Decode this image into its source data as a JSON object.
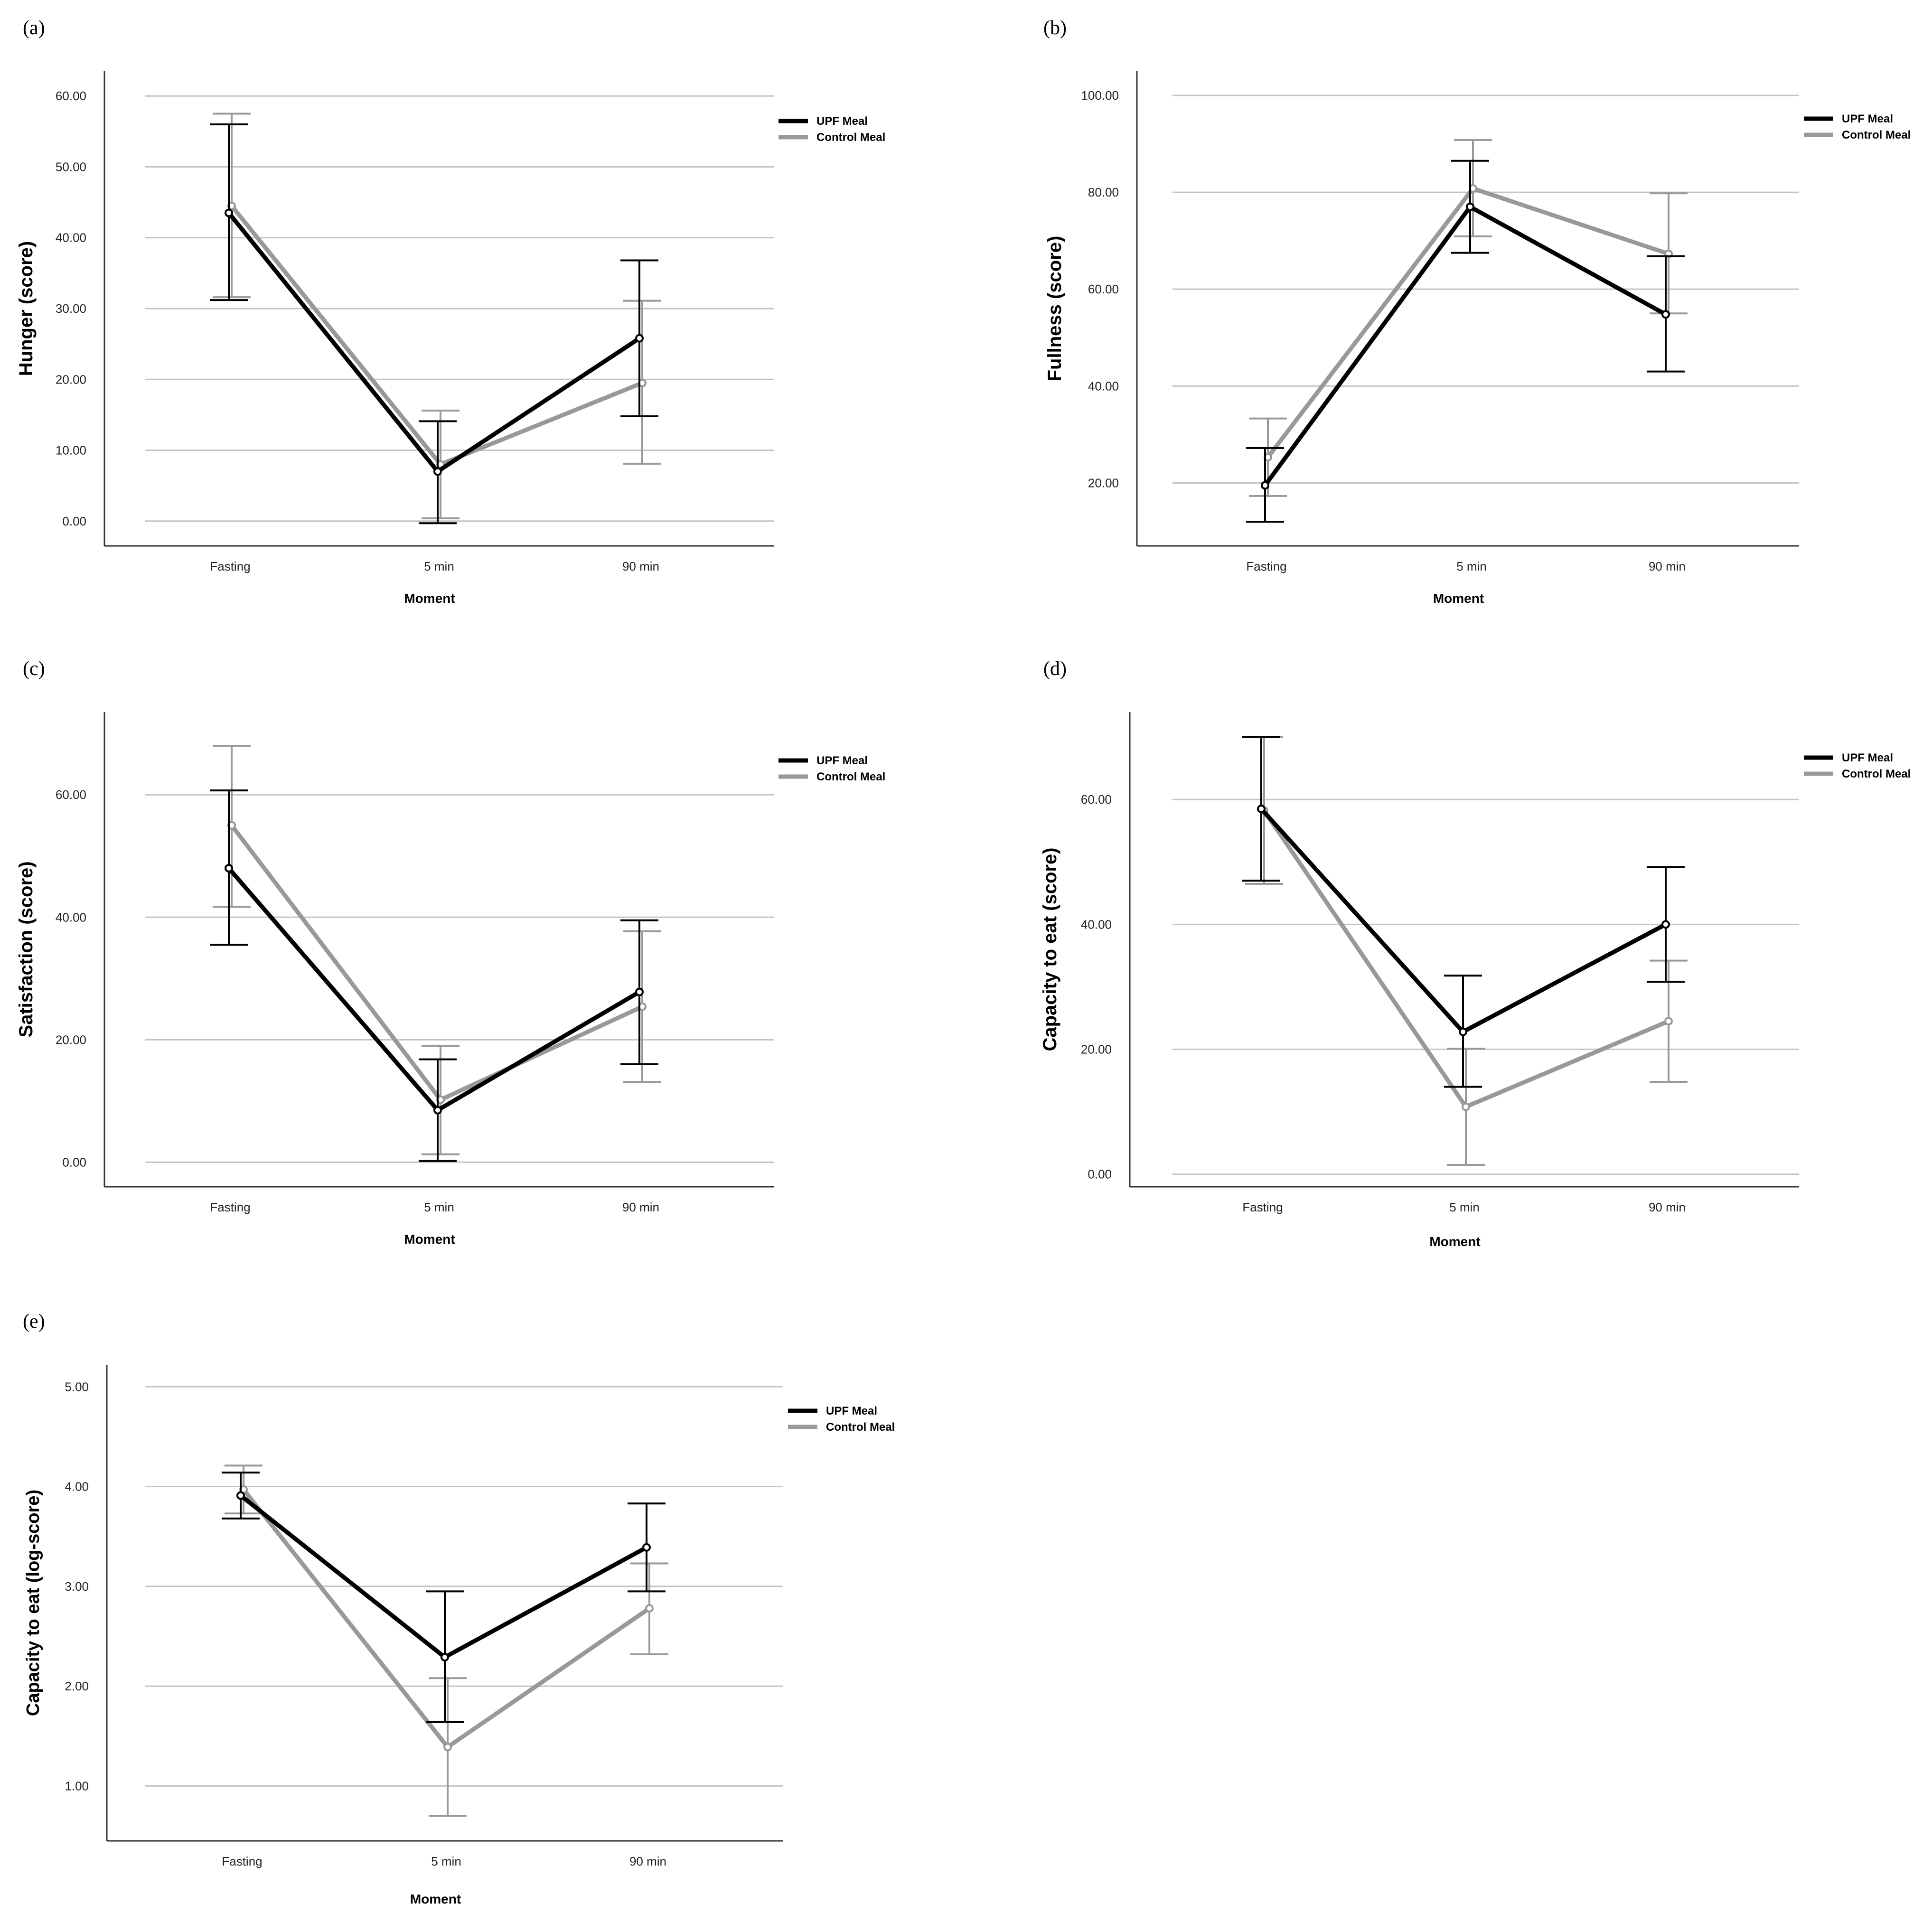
{
  "figure": {
    "series_names": [
      "UPF Meal",
      "Control Meal"
    ],
    "series_colors": [
      "#000000",
      "#999999"
    ]
  },
  "chart_data": [
    {
      "panel": "(a)",
      "type": "line",
      "categories": [
        "Fasting",
        "5 min",
        "90 min"
      ],
      "xlabel": "Moment",
      "ylabel": "Hunger (score)",
      "ylim": [
        -3.5,
        63.5
      ],
      "yticks": [
        0,
        10,
        20,
        30,
        40,
        50,
        60
      ],
      "ytick_labels": [
        "0.00",
        "10.00",
        "20.00",
        "30.00",
        "40.00",
        "50.00",
        "60.00"
      ],
      "legend": [
        "UPF Meal",
        "Control Meal"
      ],
      "series": [
        {
          "name": "UPF Meal",
          "values": [
            43.5,
            7.0,
            25.8
          ],
          "lower": [
            31.2,
            -0.3,
            14.8
          ],
          "upper": [
            56.0,
            14.1,
            36.8
          ]
        },
        {
          "name": "Control Meal",
          "values": [
            44.5,
            8.0,
            19.5
          ],
          "lower": [
            31.6,
            0.4,
            8.1
          ],
          "upper": [
            57.5,
            15.6,
            31.1
          ]
        }
      ]
    },
    {
      "panel": "(b)",
      "type": "line",
      "categories": [
        "Fasting",
        "5 min",
        "90 min"
      ],
      "xlabel": "Moment",
      "ylabel": "Fullness (score)",
      "ylim": [
        7.0,
        105.0
      ],
      "yticks": [
        20,
        40,
        60,
        80,
        100
      ],
      "ytick_labels": [
        "20.00",
        "40.00",
        "60.00",
        "80.00",
        "100.00"
      ],
      "legend": [
        "UPF Meal",
        "Control Meal"
      ],
      "series": [
        {
          "name": "UPF Meal",
          "values": [
            19.5,
            77.0,
            54.8
          ],
          "lower": [
            12.0,
            67.5,
            43.0
          ],
          "upper": [
            27.2,
            86.5,
            66.8
          ]
        },
        {
          "name": "Control Meal",
          "values": [
            25.3,
            80.8,
            67.3
          ],
          "lower": [
            17.3,
            70.9,
            55.0
          ],
          "upper": [
            33.3,
            90.8,
            79.8
          ]
        }
      ]
    },
    {
      "panel": "(c)",
      "type": "line",
      "categories": [
        "Fasting",
        "5 min",
        "90 min"
      ],
      "xlabel": "Moment",
      "ylabel": "Satisfaction (score)",
      "ylim": [
        -4.0,
        73.5
      ],
      "yticks": [
        0,
        20,
        40,
        60
      ],
      "ytick_labels": [
        "0.00",
        "20.00",
        "40.00",
        "60.00"
      ],
      "legend": [
        "UPF Meal",
        "Control Meal"
      ],
      "series": [
        {
          "name": "UPF Meal",
          "values": [
            48.0,
            8.5,
            27.8
          ],
          "lower": [
            35.5,
            0.2,
            16.0
          ],
          "upper": [
            60.7,
            16.8,
            39.5
          ]
        },
        {
          "name": "Control Meal",
          "values": [
            55.0,
            10.2,
            25.4
          ],
          "lower": [
            41.7,
            1.3,
            13.1
          ],
          "upper": [
            68.0,
            19.0,
            37.7
          ]
        }
      ]
    },
    {
      "panel": "(d)",
      "type": "line",
      "categories": [
        "Fasting",
        "5 min",
        "90 min"
      ],
      "xlabel": "Moment",
      "ylabel": "Capacity to eat (score)",
      "ylim": [
        -2.0,
        74.0
      ],
      "yticks": [
        0,
        20,
        40,
        60
      ],
      "ytick_labels": [
        "0.00",
        "20.00",
        "40.00",
        "60.00"
      ],
      "legend": [
        "UPF Meal",
        "Control Meal"
      ],
      "series": [
        {
          "name": "UPF Meal",
          "values": [
            58.5,
            22.8,
            40.0
          ],
          "lower": [
            47.0,
            14.0,
            30.8
          ],
          "upper": [
            70.0,
            31.8,
            49.2
          ]
        },
        {
          "name": "Control Meal",
          "values": [
            58.2,
            10.8,
            24.5
          ],
          "lower": [
            46.5,
            1.5,
            14.8
          ],
          "upper": [
            70.0,
            20.1,
            34.2
          ]
        }
      ]
    },
    {
      "panel": "(e)",
      "type": "line",
      "categories": [
        "Fasting",
        "5 min",
        "90 min"
      ],
      "xlabel": "Moment",
      "ylabel": "Capacity to eat (log-score)",
      "ylim": [
        0.45,
        5.22
      ],
      "yticks": [
        1,
        2,
        3,
        4,
        5
      ],
      "ytick_labels": [
        "1.00",
        "2.00",
        "3.00",
        "4.00",
        "5.00"
      ],
      "legend": [
        "UPF Meal",
        "Control Meal"
      ],
      "series": [
        {
          "name": "UPF Meal",
          "values": [
            3.91,
            2.29,
            3.39
          ],
          "lower": [
            3.68,
            1.64,
            2.95
          ],
          "upper": [
            4.14,
            2.95,
            3.83
          ]
        },
        {
          "name": "Control Meal",
          "values": [
            3.97,
            1.39,
            2.78
          ],
          "lower": [
            3.73,
            0.7,
            2.32
          ],
          "upper": [
            4.21,
            2.08,
            3.23
          ]
        }
      ]
    }
  ]
}
